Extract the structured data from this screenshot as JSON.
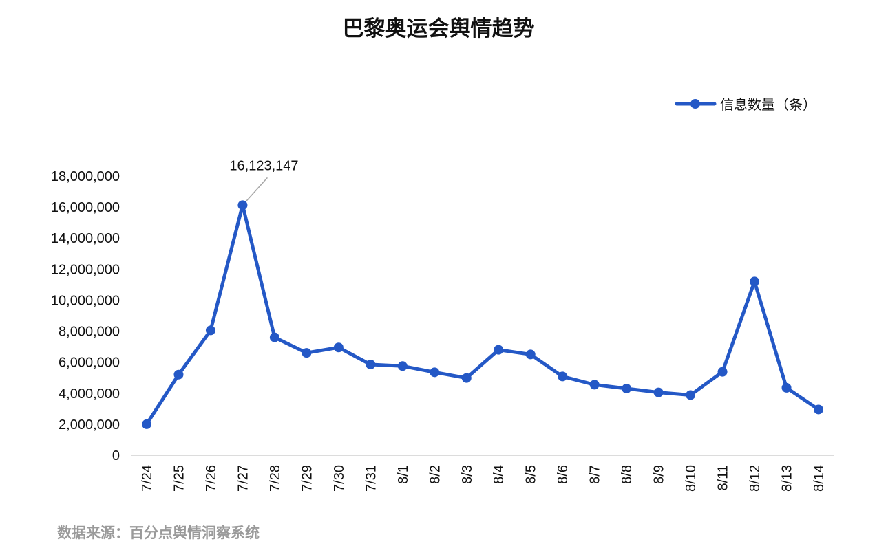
{
  "chart_data": {
    "type": "line",
    "title": "巴黎奥运会舆情趋势",
    "source": "数据来源：百分点舆情洞察系统",
    "categories": [
      "7/24",
      "7/25",
      "7/26",
      "7/27",
      "7/28",
      "7/29",
      "7/30",
      "7/31",
      "8/1",
      "8/2",
      "8/3",
      "8/4",
      "8/5",
      "8/6",
      "8/7",
      "8/8",
      "8/9",
      "8/10",
      "8/11",
      "8/12",
      "8/13",
      "8/14"
    ],
    "series": [
      {
        "name": "信息数量（条）",
        "values": [
          2000000,
          5200000,
          8050000,
          16123147,
          7600000,
          6600000,
          6950000,
          5850000,
          5750000,
          5350000,
          4980000,
          6800000,
          6500000,
          5080000,
          4550000,
          4300000,
          4050000,
          3880000,
          5380000,
          11200000,
          4350000,
          2950000
        ]
      }
    ],
    "annotations": [
      {
        "category": "7/27",
        "text": "16,123,147"
      }
    ],
    "y_ticks": [
      "0",
      "2,000,000",
      "4,000,000",
      "6,000,000",
      "8,000,000",
      "10,000,000",
      "12,000,000",
      "14,000,000",
      "16,000,000",
      "18,000,000"
    ],
    "ylim": [
      0,
      18000000
    ],
    "legend_position": "top-right",
    "grid": false,
    "colors": {
      "series": "#2458c6",
      "axis": "#d0d0d0",
      "annotation_line": "#a6a6a6"
    }
  }
}
